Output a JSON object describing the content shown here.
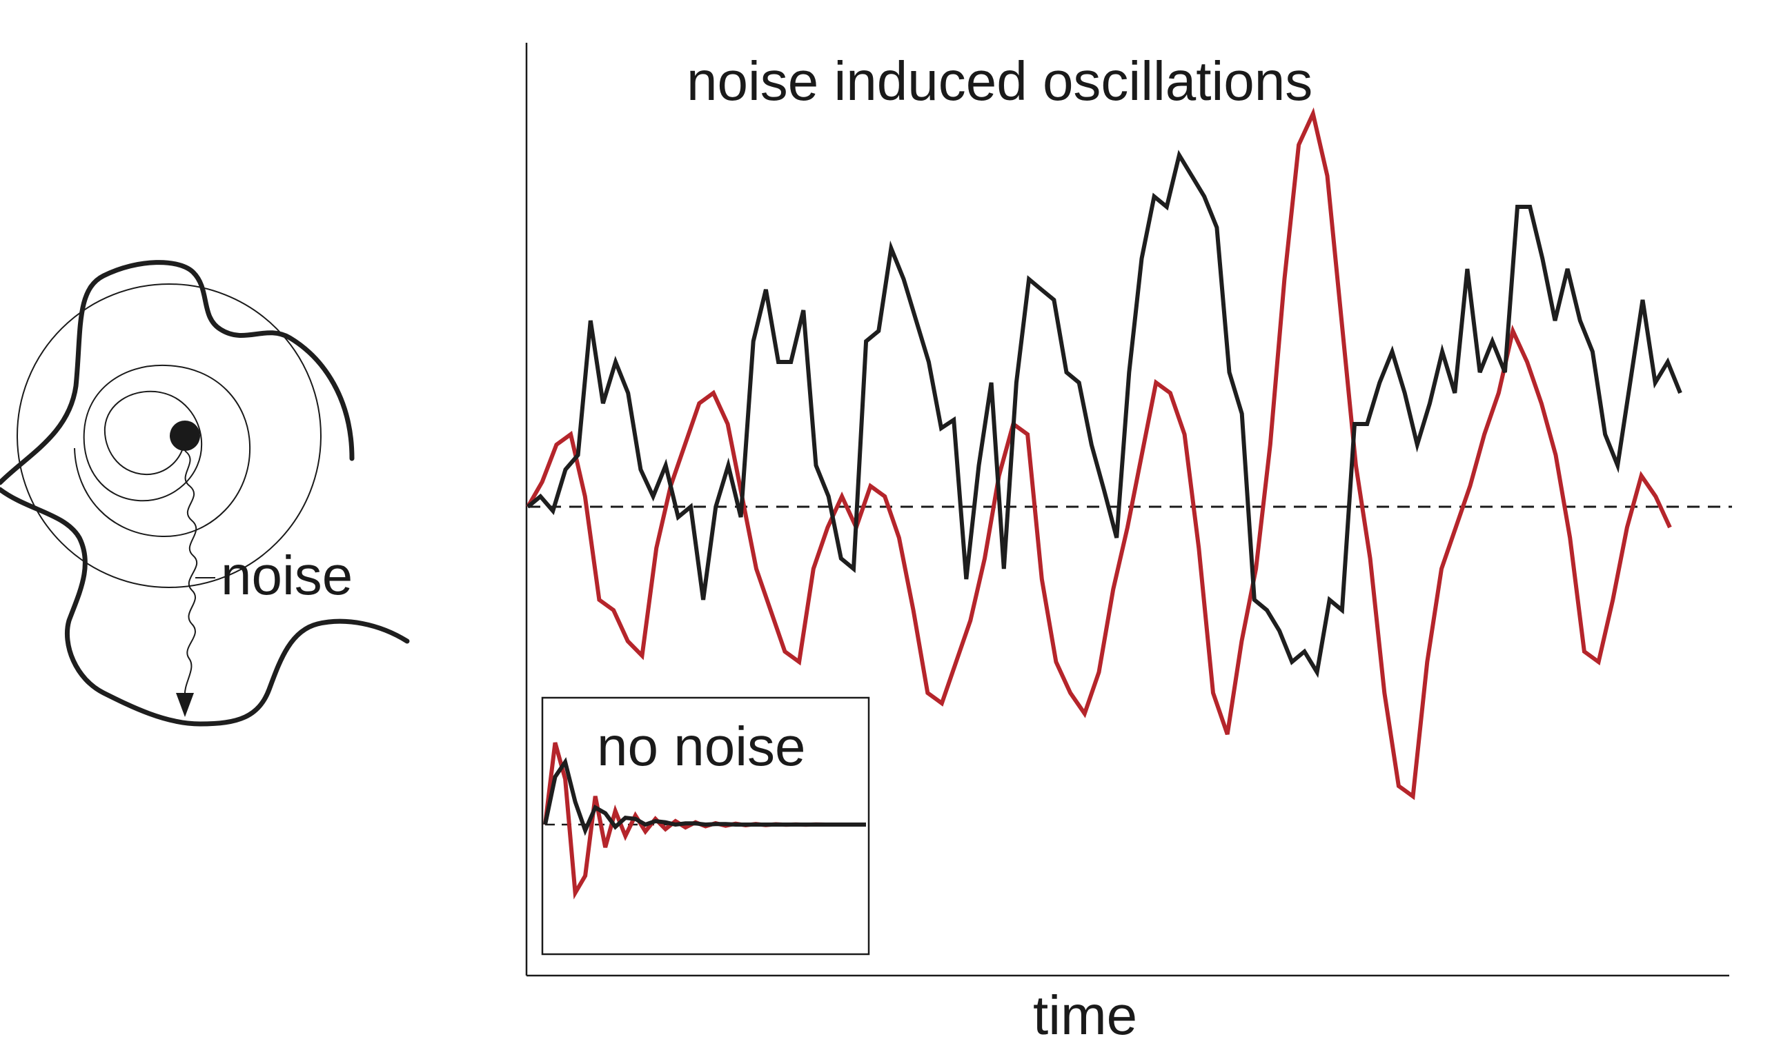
{
  "labels": {
    "noise": "noise",
    "main_title": "noise induced oscillations",
    "inset_title": "no noise",
    "x_axis": "time"
  },
  "colors": {
    "black_series": "#1e1e1e",
    "red_series": "#b5252b",
    "axis": "#1a1a1a"
  },
  "chart_data": [
    {
      "type": "line",
      "title": "noise induced oscillations",
      "xlabel": "time",
      "ylabel": "",
      "baseline_dashed": true,
      "series": [
        {
          "color": "#1e1e1e",
          "values": [
            0,
            0.05,
            -0.02,
            0.18,
            0.25,
            0.9,
            0.5,
            0.7,
            0.55,
            0.18,
            0.05,
            0.2,
            -0.05,
            0,
            -0.45,
            0,
            0.2,
            -0.05,
            0.8,
            1.05,
            0.7,
            0.7,
            0.95,
            0.2,
            0.05,
            -0.25,
            -0.3,
            0.8,
            0.85,
            1.25,
            1.1,
            0.9,
            0.7,
            0.38,
            0.42,
            -0.35,
            0.2,
            0.6,
            -0.3,
            0.6,
            1.1,
            1.05,
            1.0,
            0.65,
            0.6,
            0.3,
            0.08,
            -0.15,
            0.65,
            1.2,
            1.5,
            1.45,
            1.7,
            1.6,
            1.5,
            1.35,
            0.65,
            0.45,
            -0.45,
            -0.5,
            -0.6,
            -0.75,
            -0.7,
            -0.8,
            -0.45,
            -0.5,
            0.4,
            0.4,
            0.6,
            0.75,
            0.55,
            0.3,
            0.5,
            0.75,
            0.55,
            1.15,
            0.65,
            0.8,
            0.65,
            1.45,
            1.45,
            1.2,
            0.9,
            1.15,
            0.9,
            0.75,
            0.35,
            0.2,
            0.6,
            1.0,
            0.6,
            0.7,
            0.55
          ]
        },
        {
          "color": "#b5252b",
          "values": [
            0,
            0.12,
            0.3,
            0.35,
            0.05,
            -0.45,
            -0.5,
            -0.65,
            -0.72,
            -0.2,
            0.1,
            0.3,
            0.5,
            0.55,
            0.4,
            0.05,
            -0.3,
            -0.5,
            -0.7,
            -0.75,
            -0.3,
            -0.1,
            0.05,
            -0.1,
            0.1,
            0.05,
            -0.15,
            -0.5,
            -0.9,
            -0.95,
            -0.75,
            -0.55,
            -0.25,
            0.15,
            0.4,
            0.35,
            -0.35,
            -0.75,
            -0.9,
            -1.0,
            -0.8,
            -0.4,
            -0.1,
            0.25,
            0.6,
            0.55,
            0.35,
            -0.2,
            -0.9,
            -1.1,
            -0.65,
            -0.3,
            0.3,
            1.1,
            1.75,
            1.9,
            1.6,
            0.9,
            0.2,
            -0.25,
            -0.9,
            -1.35,
            -1.4,
            -0.75,
            -0.3,
            -0.1,
            0.1,
            0.35,
            0.55,
            0.85,
            0.7,
            0.5,
            0.25,
            -0.15,
            -0.7,
            -0.75,
            -0.45,
            -0.1,
            0.15,
            0.05,
            -0.1
          ]
        }
      ]
    },
    {
      "type": "line",
      "title": "no noise",
      "baseline_dashed": true,
      "series": [
        {
          "color": "#1e1e1e",
          "description_of_shape": "damped oscillation decaying to baseline, small amplitude",
          "values": [
            0,
            0.42,
            0.55,
            0.2,
            -0.05,
            0.15,
            0.1,
            -0.02,
            0.06,
            0.05,
            0,
            0.03,
            0.02,
            0,
            0.01,
            0.01,
            0,
            0.005,
            0.005,
            0,
            0,
            0,
            0,
            0,
            0,
            0,
            0,
            0,
            0,
            0,
            0,
            0,
            0
          ]
        },
        {
          "color": "#b5252b",
          "description_of_shape": "damped oscillation decaying to baseline, large initial amplitude",
          "values": [
            0,
            0.72,
            0.4,
            -0.6,
            -0.45,
            0.25,
            -0.2,
            0.12,
            -0.1,
            0.08,
            -0.06,
            0.05,
            -0.04,
            0.03,
            -0.025,
            0.02,
            -0.015,
            0.012,
            -0.01,
            0.008,
            -0.006,
            0.005,
            -0.004,
            0.003,
            -0.002,
            0.002,
            -0.001,
            0.001,
            0,
            0,
            0,
            0,
            0
          ]
        }
      ]
    }
  ]
}
